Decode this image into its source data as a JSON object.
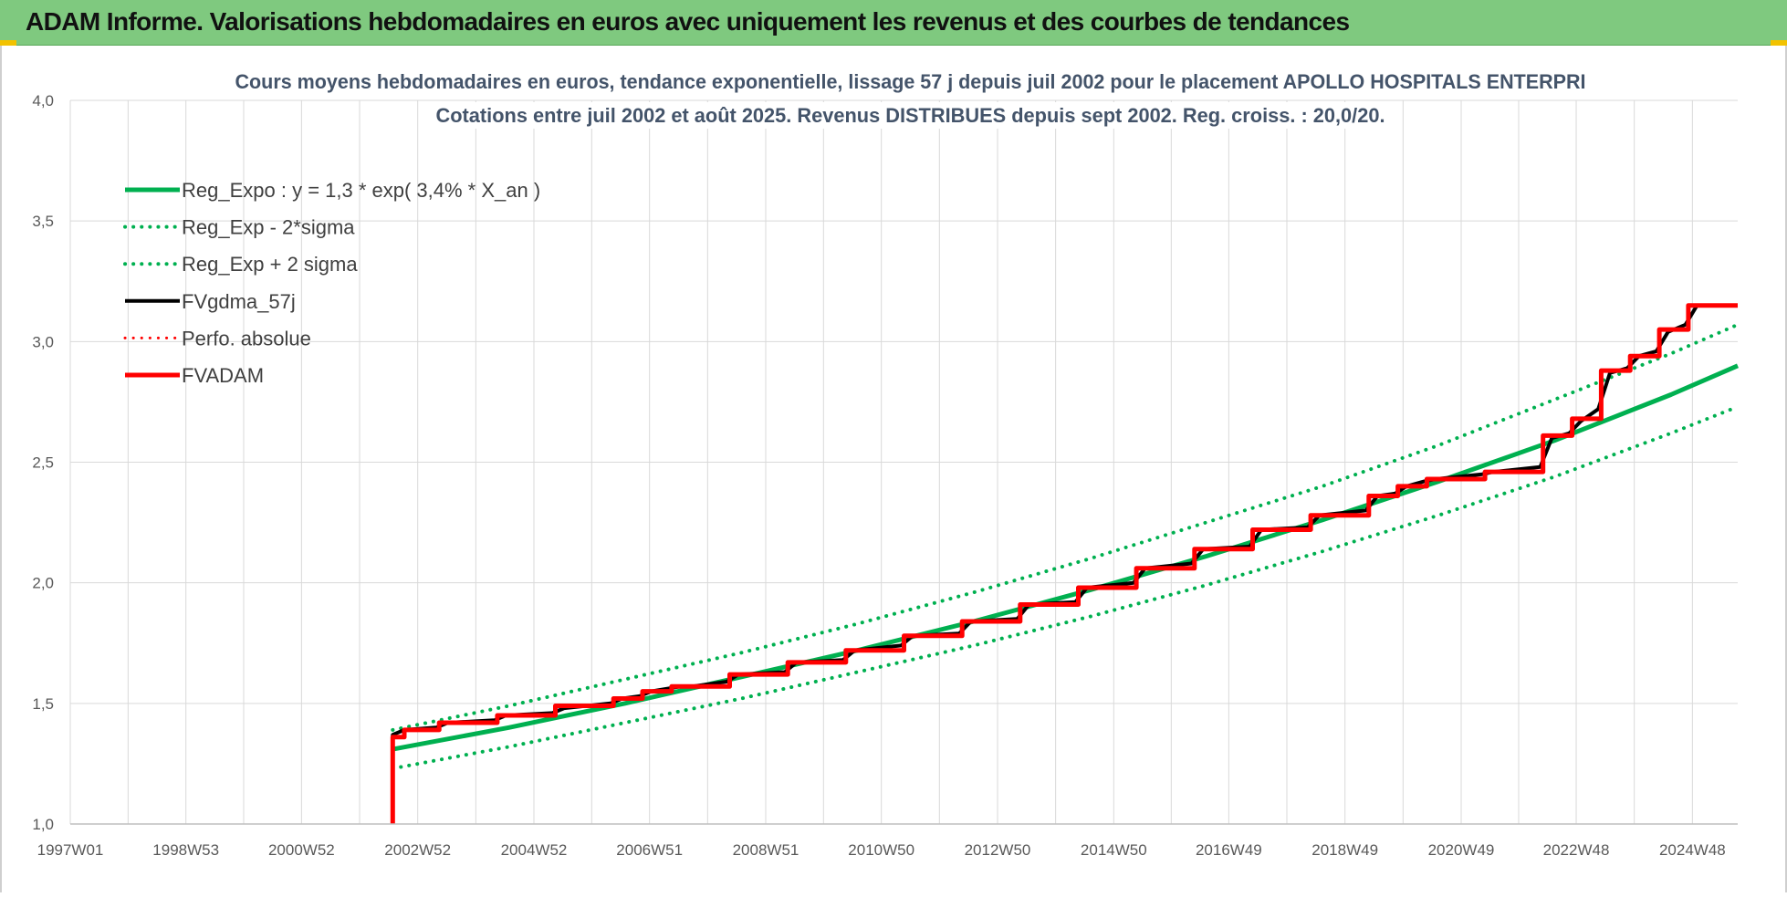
{
  "header": {
    "title": "ADAM Informe. Valorisations hebdomadaires en euros avec uniquement les revenus et des courbes de tendances"
  },
  "colors": {
    "header_bg": "#7fc97f",
    "trend": "#00b050",
    "fv": "#000000",
    "adam": "#ff0000",
    "grid": "#d9d9d9"
  },
  "chart_data": {
    "type": "line",
    "title": [
      "Cours moyens hebdomadaires en euros, tendance exponentielle, lissage 57 j depuis juil 2002 pour le placement APOLLO HOSPITALS ENTERPRI",
      "Cotations entre juil 2002 et août 2025. Revenus DISTRIBUES depuis sept 2002. Reg. croiss. : 20,0/20."
    ],
    "xlim": [
      1997.0,
      2025.7
    ],
    "ylim": [
      1.0,
      4.0
    ],
    "y_ticks": [
      1.0,
      1.5,
      2.0,
      2.5,
      3.0,
      3.5,
      4.0
    ],
    "y_tick_labels": [
      "1,0",
      "1,5",
      "2,0",
      "2,5",
      "3,0",
      "3,5",
      "4,0"
    ],
    "x_ticks": [
      1997.0,
      1998.99,
      2000.98,
      2002.98,
      2004.98,
      2006.97,
      2008.97,
      2010.96,
      2012.96,
      2014.96,
      2016.94,
      2018.94,
      2020.94,
      2022.92,
      2024.92
    ],
    "x_tick_labels": [
      "1997W01",
      "1998W53",
      "2000W52",
      "2002W52",
      "2004W52",
      "2006W51",
      "2008W51",
      "2010W50",
      "2012W50",
      "2014W50",
      "2016W49",
      "2018W49",
      "2020W49",
      "2022W48",
      "2024W48"
    ],
    "grid": true,
    "legend_position": "top-left",
    "legend": [
      {
        "label": "Reg_Expo : y = 1,3 * exp( 3,4% *  X_an )",
        "style": "solid",
        "color": "#00b050",
        "width": 5
      },
      {
        "label": "Reg_Exp - 2*sigma",
        "style": "dotted",
        "color": "#00b050",
        "width": 4
      },
      {
        "label": "Reg_Exp + 2 sigma",
        "style": "dotted",
        "color": "#00b050",
        "width": 4
      },
      {
        "label": "FVgdma_57j",
        "style": "solid",
        "color": "#000000",
        "width": 4
      },
      {
        "label": "Perfo. absolue",
        "style": "dotted",
        "color": "#ff0000",
        "width": 3
      },
      {
        "label": "FVADAM",
        "style": "solid",
        "color": "#ff0000",
        "width": 5
      }
    ],
    "series": [
      {
        "name": "Reg_Expo : y = 1,3 * exp( 3,4% *  X_an )",
        "x": [
          2002.55,
          2004.55,
          2006.55,
          2008.55,
          2010.55,
          2012.55,
          2014.55,
          2016.55,
          2018.55,
          2020.55,
          2022.55,
          2024.55,
          2025.7
        ],
        "y": [
          1.31,
          1.4,
          1.5,
          1.61,
          1.72,
          1.84,
          1.97,
          2.11,
          2.26,
          2.42,
          2.59,
          2.78,
          2.9
        ]
      },
      {
        "name": "Reg_Exp - 2*sigma",
        "x": [
          2002.55,
          2004.55,
          2006.55,
          2008.55,
          2010.55,
          2012.55,
          2014.55,
          2016.55,
          2018.55,
          2020.55,
          2022.55,
          2024.55,
          2025.7
        ],
        "y": [
          1.23,
          1.32,
          1.42,
          1.52,
          1.63,
          1.74,
          1.86,
          1.99,
          2.13,
          2.28,
          2.44,
          2.62,
          2.73
        ]
      },
      {
        "name": "Reg_Exp + 2 sigma",
        "x": [
          2002.55,
          2004.55,
          2006.55,
          2008.55,
          2010.55,
          2012.55,
          2014.55,
          2016.55,
          2018.55,
          2020.55,
          2022.55,
          2024.55,
          2025.7
        ],
        "y": [
          1.39,
          1.49,
          1.6,
          1.71,
          1.83,
          1.96,
          2.1,
          2.25,
          2.4,
          2.57,
          2.76,
          2.95,
          3.07
        ]
      },
      {
        "name": "FVgdma_57j",
        "x": [
          2002.55,
          2002.55,
          2002.75,
          2003.3,
          2003.5,
          2004.3,
          2004.5,
          2005.3,
          2005.5,
          2006.3,
          2006.5,
          2006.8,
          2007.0,
          2007.5,
          2007.7,
          2008.3,
          2008.5,
          2009.3,
          2009.5,
          2010.3,
          2010.5,
          2011.3,
          2011.5,
          2012.3,
          2012.5,
          2013.3,
          2013.5,
          2014.3,
          2014.5,
          2015.3,
          2015.5,
          2016.3,
          2016.5,
          2017.3,
          2017.5,
          2018.3,
          2018.5,
          2019.3,
          2019.5,
          2019.8,
          2020.0,
          2020.3,
          2020.5,
          2021.3,
          2021.5,
          2022.3,
          2022.5,
          2022.8,
          2023.0,
          2023.3,
          2023.5,
          2023.8,
          2024.0,
          2024.3,
          2024.5,
          2024.8,
          2025.0,
          2025.7
        ],
        "y": [
          1.0,
          1.37,
          1.39,
          1.4,
          1.42,
          1.43,
          1.45,
          1.46,
          1.48,
          1.5,
          1.52,
          1.53,
          1.55,
          1.57,
          1.57,
          1.59,
          1.62,
          1.63,
          1.67,
          1.68,
          1.72,
          1.74,
          1.78,
          1.79,
          1.84,
          1.85,
          1.91,
          1.92,
          1.98,
          2.0,
          2.06,
          2.08,
          2.14,
          2.15,
          2.22,
          2.23,
          2.28,
          2.3,
          2.36,
          2.37,
          2.4,
          2.42,
          2.43,
          2.45,
          2.46,
          2.48,
          2.6,
          2.62,
          2.67,
          2.72,
          2.87,
          2.89,
          2.94,
          2.96,
          3.04,
          3.07,
          3.15,
          3.15
        ]
      },
      {
        "name": "FVADAM",
        "x": [
          2002.55,
          2002.55,
          2002.75,
          2002.75,
          2003.35,
          2003.35,
          2004.35,
          2004.35,
          2005.35,
          2005.35,
          2006.35,
          2006.35,
          2006.85,
          2006.85,
          2007.35,
          2007.35,
          2008.35,
          2008.35,
          2009.35,
          2009.35,
          2010.35,
          2010.35,
          2011.35,
          2011.35,
          2012.35,
          2012.35,
          2013.35,
          2013.35,
          2014.35,
          2014.35,
          2015.35,
          2015.35,
          2016.35,
          2016.35,
          2017.35,
          2017.35,
          2018.35,
          2018.35,
          2019.35,
          2019.35,
          2019.85,
          2019.85,
          2020.35,
          2020.35,
          2021.35,
          2021.35,
          2022.35,
          2022.35,
          2022.85,
          2022.85,
          2023.35,
          2023.35,
          2023.85,
          2023.85,
          2024.35,
          2024.35,
          2024.85,
          2024.85,
          2025.7
        ],
        "y": [
          1.0,
          1.36,
          1.36,
          1.39,
          1.39,
          1.42,
          1.42,
          1.45,
          1.45,
          1.49,
          1.49,
          1.52,
          1.52,
          1.55,
          1.55,
          1.57,
          1.57,
          1.62,
          1.62,
          1.67,
          1.67,
          1.72,
          1.72,
          1.78,
          1.78,
          1.84,
          1.84,
          1.91,
          1.91,
          1.98,
          1.98,
          2.06,
          2.06,
          2.14,
          2.14,
          2.22,
          2.22,
          2.28,
          2.28,
          2.36,
          2.36,
          2.4,
          2.4,
          2.43,
          2.43,
          2.46,
          2.46,
          2.61,
          2.61,
          2.68,
          2.68,
          2.88,
          2.88,
          2.94,
          2.94,
          3.05,
          3.05,
          3.15,
          3.15
        ]
      }
    ]
  }
}
